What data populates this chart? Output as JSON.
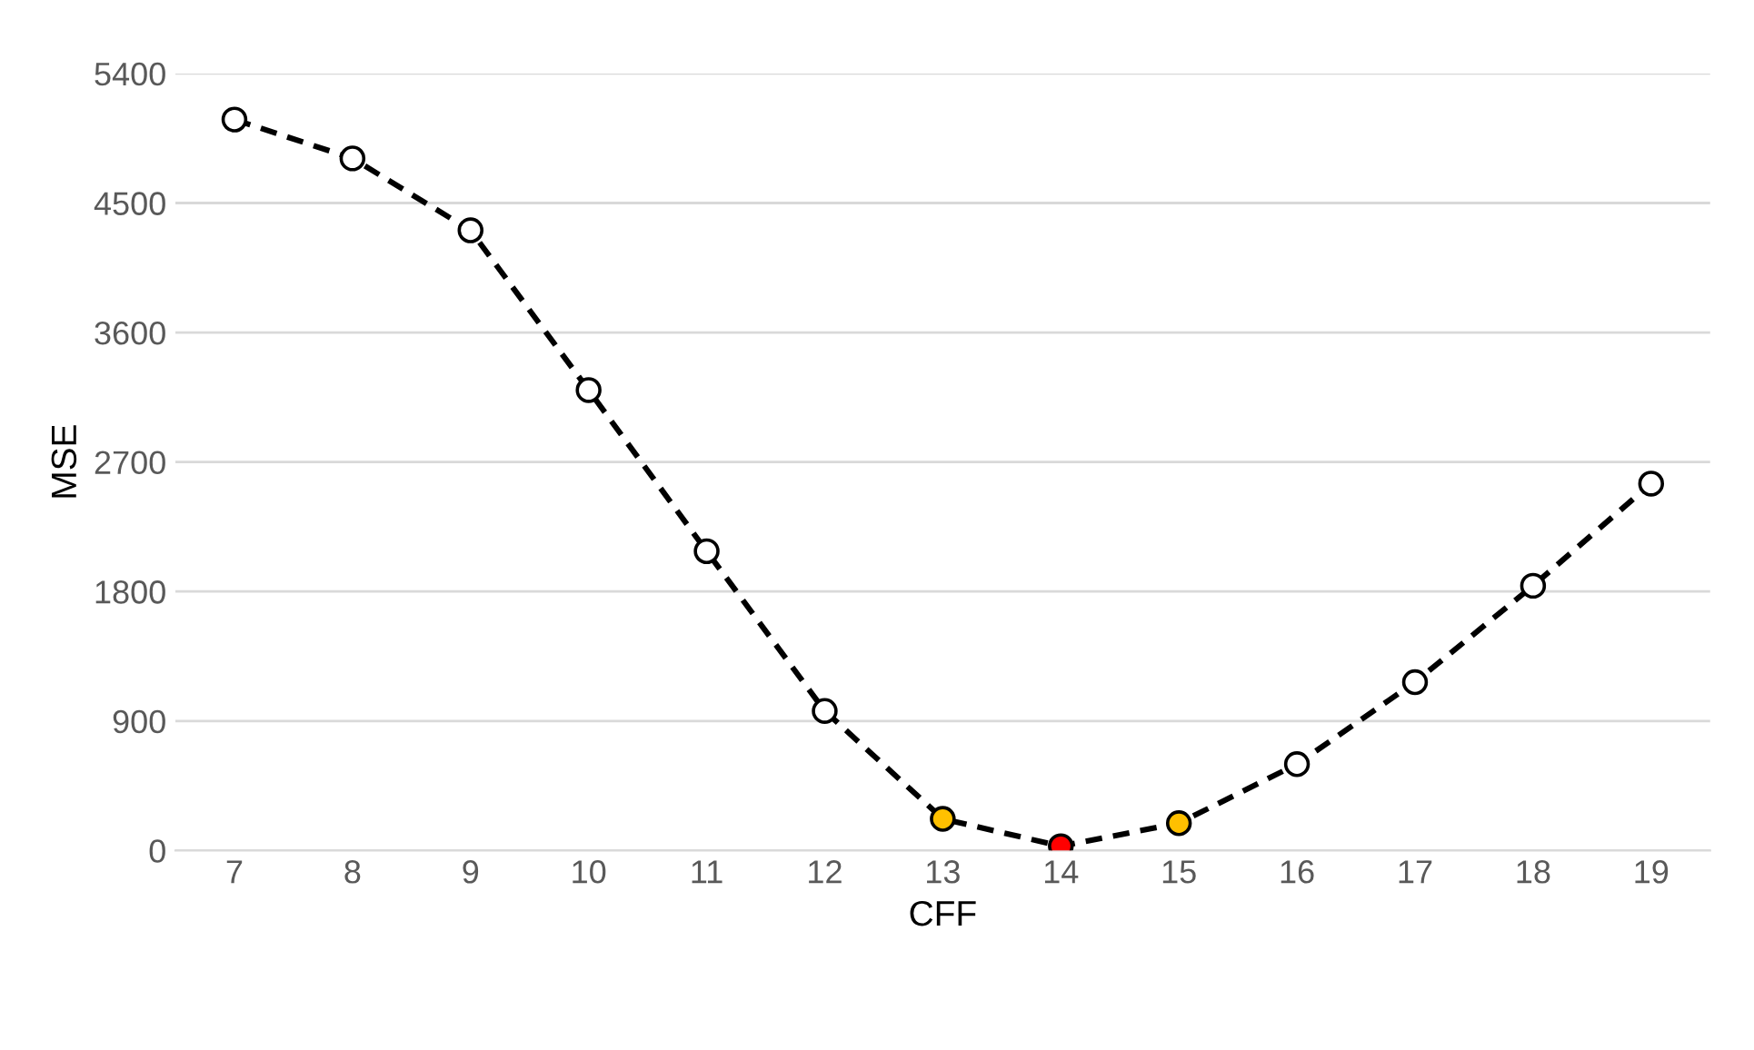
{
  "chart_data": {
    "type": "line",
    "xlabel": "CFF",
    "ylabel": "MSE",
    "categories": [
      "7",
      "8",
      "9",
      "10",
      "11",
      "12",
      "13",
      "14",
      "15",
      "16",
      "17",
      "18",
      "19"
    ],
    "series": [
      {
        "color": "#000000",
        "values": [
          5080,
          4810,
          4310,
          3200,
          2080,
          970,
          220,
          30,
          190,
          600,
          1170,
          1840,
          2550
        ],
        "colors": [
          "#ffffff",
          "#ffffff",
          "#ffffff",
          "#ffffff",
          "#ffffff",
          "#ffffff",
          "#ffc000",
          "#ff0000",
          "#ffc000",
          "#ffffff",
          "#ffffff",
          "#ffffff",
          "#ffffff"
        ]
      }
    ],
    "ylim": [
      0,
      5400
    ],
    "yticks": [
      0,
      900,
      1800,
      2700,
      3600,
      4500,
      5400
    ],
    "grid": "y",
    "marker": "circle",
    "line_style": "dashed"
  }
}
